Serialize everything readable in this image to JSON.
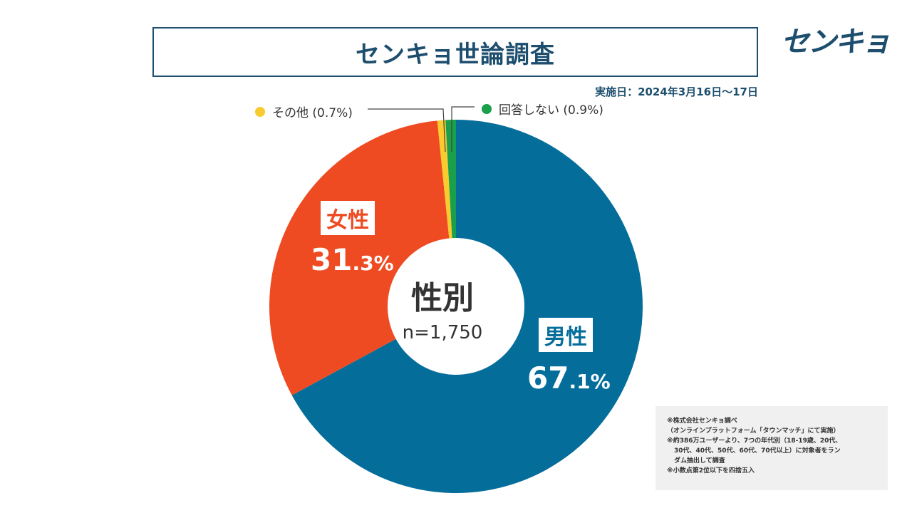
{
  "header": {
    "title": "センキョ世論調査",
    "logo_text": "センキョ",
    "date_text": "実施日：2024年3月16日～17日"
  },
  "colors": {
    "male": "#046d9a",
    "female": "#ef4b23",
    "other": "#f8cb2e",
    "no_answer": "#1aa04b",
    "navy": "#1d4e6e"
  },
  "center": {
    "title": "性別",
    "n_text": "n=1,750"
  },
  "chart_data": {
    "type": "pie",
    "title": "性別",
    "slices": [
      {
        "key": "male",
        "label": "男性",
        "value": 67.1,
        "pct_int": "67",
        "pct_dec": ".1%"
      },
      {
        "key": "female",
        "label": "女性",
        "value": 31.3,
        "pct_int": "31",
        "pct_dec": ".3%"
      },
      {
        "key": "other",
        "label": "その他 (0.7%)",
        "value": 0.7
      },
      {
        "key": "no_answer",
        "label": "回答しない (0.9%)",
        "value": 0.9
      }
    ]
  },
  "notes": [
    "※株式会社センキョ調べ",
    "（オンラインプラットフォーム「タウンマッチ」にて実施）",
    "※約386万ユーザーより、7つの年代別（18-19歳、20代、",
    "30代、40代、50代、60代、70代以上）に対象者をラン",
    "ダム抽出して調査",
    "※小数点第2位以下を四捨五入"
  ]
}
